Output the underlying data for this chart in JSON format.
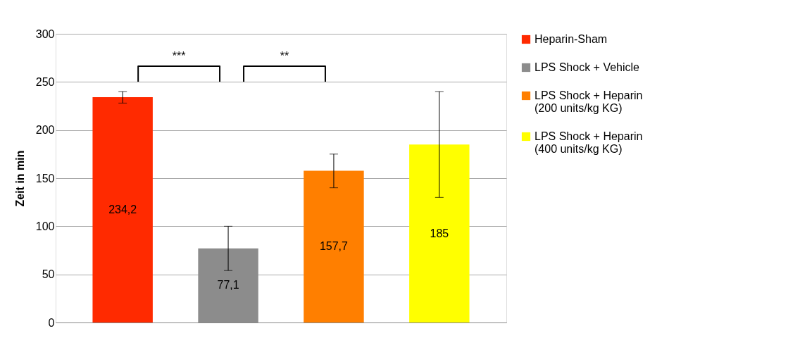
{
  "chart_data": {
    "type": "bar",
    "ylabel": "Zeit in min",
    "categories": [
      null,
      null,
      null,
      null
    ],
    "series": [
      {
        "name": "Heparin-Sham",
        "color": "#ff2a00",
        "values": [
          234.2,
          null,
          null,
          null
        ],
        "errors": [
          [
            228,
            240
          ],
          null,
          null,
          null
        ],
        "value_labels": [
          "234,2",
          null,
          null,
          null
        ]
      },
      {
        "name": "LPS Shock + Vehicle",
        "color": "#8c8c8c",
        "values": [
          null,
          77.1,
          null,
          null
        ],
        "errors": [
          null,
          [
            54,
            100
          ],
          null,
          null
        ],
        "value_labels": [
          null,
          "77,1",
          null,
          null
        ]
      },
      {
        "name": "LPS Shock + Heparin (200 units/kg KG)",
        "color": "#ff7f00",
        "values": [
          null,
          null,
          157.7,
          null
        ],
        "errors": [
          null,
          null,
          [
            140,
            175
          ],
          null
        ],
        "value_labels": [
          null,
          null,
          "157,7",
          null
        ]
      },
      {
        "name": "LPS Shock + Heparin (400 units/kg KG)",
        "color": "#ffff00",
        "values": [
          null,
          null,
          null,
          185
        ],
        "errors": [
          null,
          null,
          null,
          [
            130,
            240
          ]
        ],
        "value_labels": [
          null,
          null,
          null,
          "185"
        ]
      }
    ],
    "ylim": [
      0,
      300
    ],
    "yticks": [
      0,
      50,
      100,
      150,
      200,
      250,
      300
    ],
    "grid": "y",
    "legend": "right",
    "annotations": [
      "***",
      "**"
    ]
  }
}
